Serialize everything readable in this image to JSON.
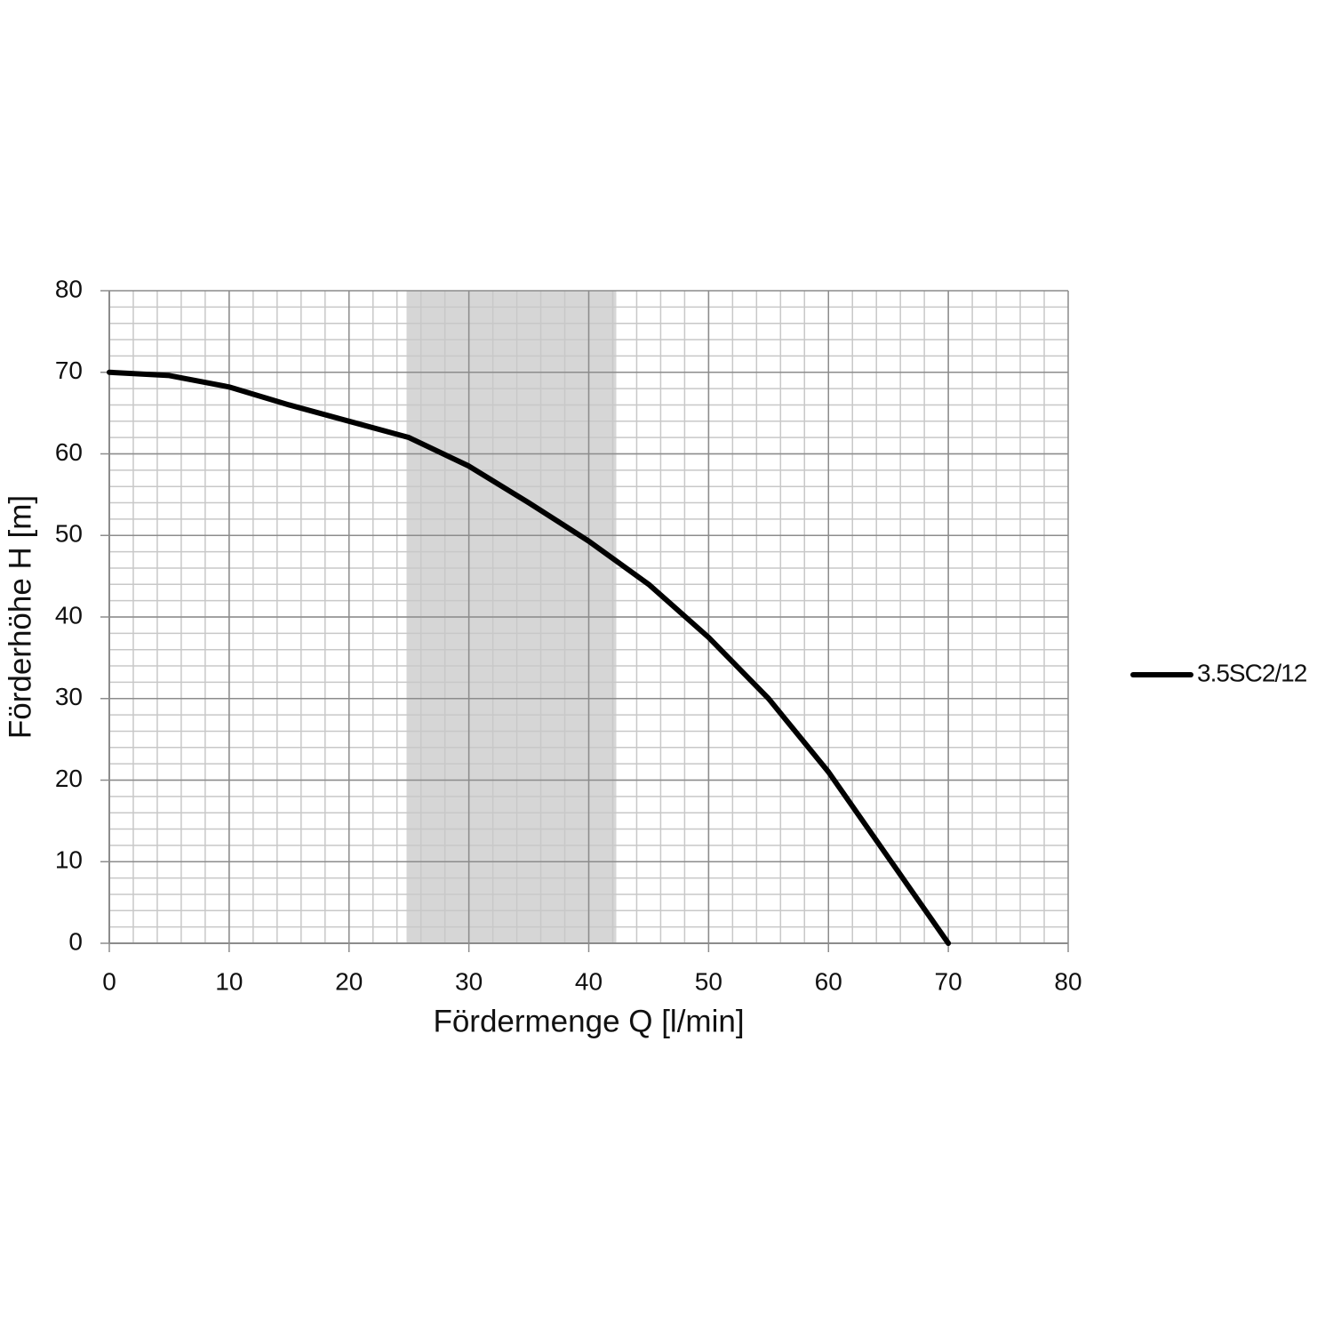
{
  "chart_data": {
    "type": "line",
    "x_label": "Fördermenge Q [l/min]",
    "y_label": "Förderhöhe H [m]",
    "x": [
      0,
      5,
      10,
      15,
      20,
      25,
      30,
      35,
      40,
      45,
      50,
      55,
      60,
      65,
      70
    ],
    "series": [
      {
        "name": "3.5SC2/12",
        "color": "#000000",
        "values": [
          70,
          69.6,
          68.2,
          66,
          64,
          62,
          58.5,
          54,
          49.3,
          44,
          37.5,
          30,
          21,
          10.5,
          0
        ]
      }
    ],
    "xlim": [
      0,
      80
    ],
    "xticks": [
      0,
      10,
      20,
      30,
      40,
      50,
      60,
      70,
      80
    ],
    "ylim": [
      0,
      80
    ],
    "yticks": [
      0,
      10,
      20,
      30,
      40,
      50,
      60,
      70,
      80
    ],
    "grid": true,
    "minor_x_step": 2,
    "minor_y_step": 2,
    "highlight_range": [
      24.8,
      42.3
    ],
    "highlight_color": "#d6d6d6",
    "legend": "right"
  }
}
